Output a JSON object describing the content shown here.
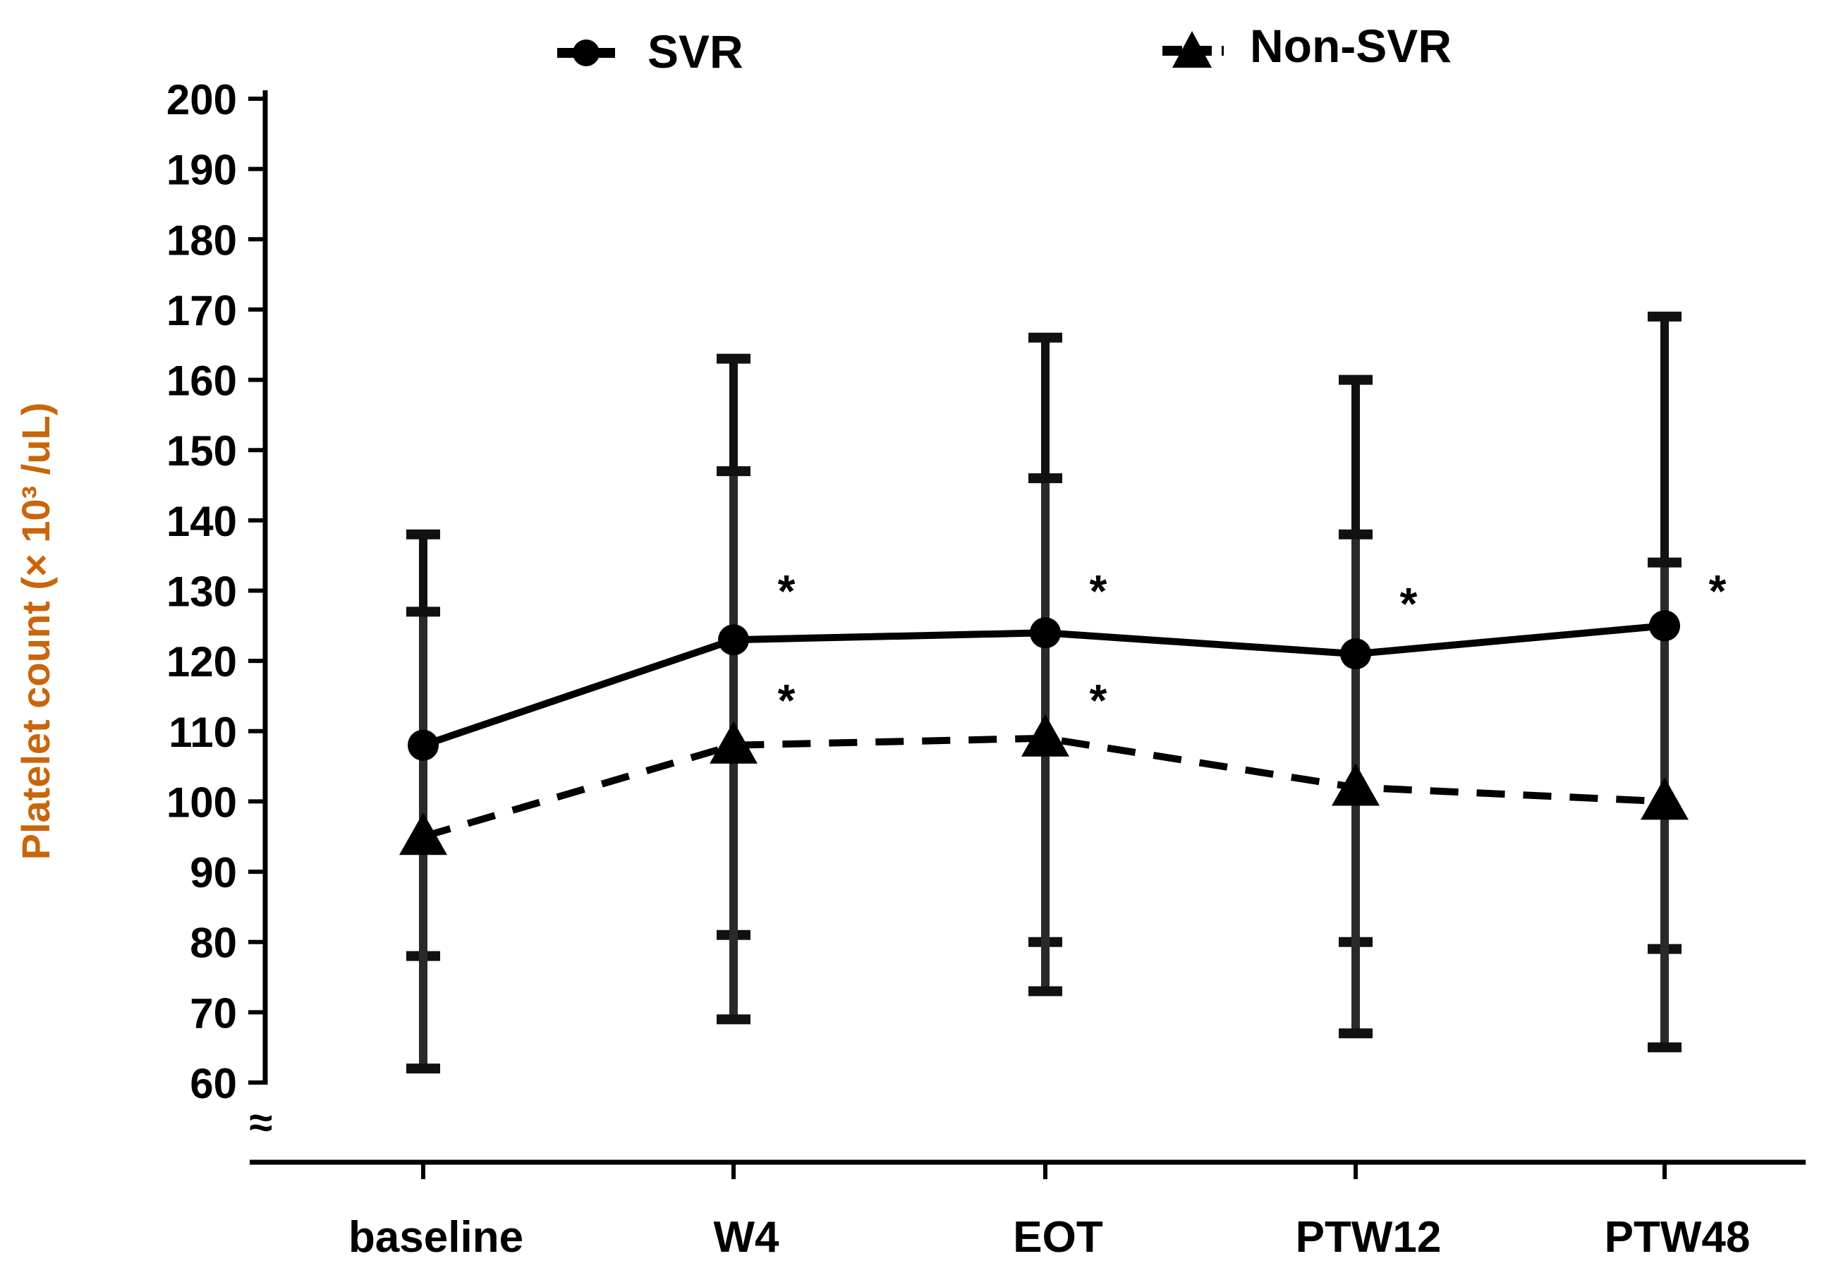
{
  "chart_data": {
    "type": "line",
    "title": "",
    "xlabel": "",
    "ylabel": "Platelet count (× 10³ /uL)",
    "ylabel_color": "#c9650b",
    "axis_break_symbol": "≈",
    "ylim": [
      60,
      200
    ],
    "yticks": [
      "200",
      "190",
      "180",
      "170",
      "160",
      "150",
      "140",
      "130",
      "120",
      "110",
      "100",
      "90",
      "80",
      "70",
      "60"
    ],
    "categories": [
      "baseline",
      "W4",
      "EOT",
      "PTW12",
      "PTW48"
    ],
    "series": [
      {
        "name": "SVR",
        "marker": "circle",
        "line_style": "solid",
        "values": [
          108,
          123,
          124,
          121,
          125
        ],
        "error_upper": [
          138,
          163,
          166,
          160,
          169
        ],
        "error_lower": [
          78,
          81,
          80,
          80,
          79
        ],
        "significance": [
          "",
          "*",
          "*",
          "*",
          "*"
        ]
      },
      {
        "name": "Non-SVR",
        "marker": "triangle",
        "line_style": "dashed",
        "values": [
          95,
          108,
          109,
          102,
          100
        ],
        "error_upper": [
          127,
          147,
          146,
          138,
          134
        ],
        "error_lower": [
          62,
          69,
          73,
          67,
          65
        ],
        "significance": [
          "",
          "*",
          "*",
          "",
          ""
        ]
      }
    ],
    "legend": [
      {
        "label": "SVR",
        "marker": "circle"
      },
      {
        "label": "Non-SVR",
        "marker": "triangle"
      }
    ],
    "legend_position": "top"
  }
}
